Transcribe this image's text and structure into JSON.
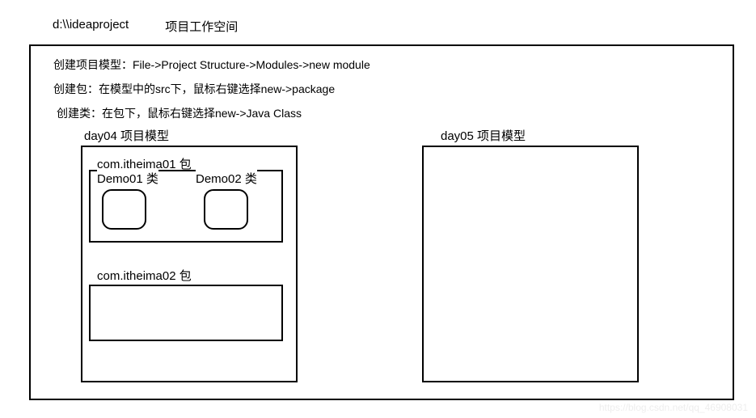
{
  "top": {
    "path": "d:\\\\ideaproject",
    "workspace_label": "项目工作空间"
  },
  "instructions": {
    "create_module": "创建项目模型：File->Project Structure->Modules->new module",
    "create_package": "创建包：在模型中的src下，鼠标右键选择new->package",
    "create_class": "创建类：在包下，鼠标右键选择new->Java Class"
  },
  "modules": {
    "left": {
      "title": "day04  项目模型",
      "package1": {
        "label": "com.itheima01  包",
        "class1": "Demo01  类",
        "class2": "Demo02 类"
      },
      "package2": {
        "label": "com.itheima02 包"
      }
    },
    "right": {
      "title": "day05  项目模型"
    }
  },
  "style": {
    "border_color": "#000000",
    "background_color": "#ffffff",
    "text_color": "#000000",
    "font_size_body": 14,
    "font_size_label": 15,
    "class_box_radius": 12,
    "type": "diagram"
  },
  "watermark": "https://blog.csdn.net/qq_46908031"
}
